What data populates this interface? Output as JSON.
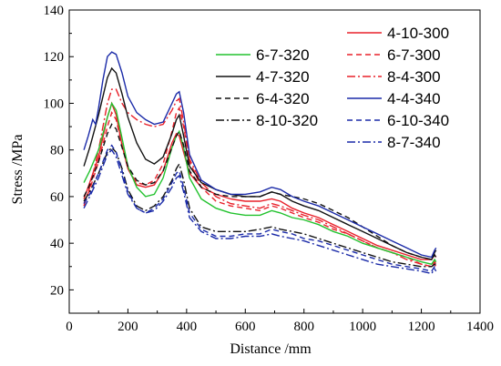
{
  "chart_data": {
    "type": "line",
    "xlabel": "Distance /mm",
    "ylabel": "Stress /MPa",
    "xlim": [
      0,
      1400
    ],
    "ylim": [
      10,
      140
    ],
    "xticks": [
      0,
      200,
      400,
      600,
      800,
      1000,
      1200,
      1400
    ],
    "yticks": [
      20,
      40,
      60,
      80,
      100,
      120,
      140
    ],
    "grid": false,
    "legend_placement": "top, two columns",
    "series": [
      {
        "name": "4-10-300",
        "color": "#e8202a",
        "dash": "solid",
        "x": [
          50,
          70,
          100,
          130,
          145,
          160,
          180,
          200,
          230,
          260,
          290,
          320,
          350,
          365,
          375,
          390,
          410,
          450,
          500,
          550,
          600,
          650,
          690,
          720,
          760,
          800,
          850,
          900,
          950,
          1000,
          1050,
          1100,
          1150,
          1200,
          1235,
          1245,
          1250
        ],
        "y": [
          59,
          66,
          77,
          94,
          100,
          95,
          82,
          72,
          65,
          64,
          65,
          71,
          83,
          87,
          86,
          79,
          70,
          64,
          61,
          59,
          58,
          58,
          59,
          58,
          55,
          53,
          51,
          48,
          45,
          42,
          39,
          37,
          35,
          33,
          33,
          35,
          34
        ]
      },
      {
        "name": "6-7-300",
        "color": "#e8202a",
        "dash": "6,4",
        "x": [
          50,
          70,
          100,
          130,
          145,
          160,
          180,
          200,
          230,
          260,
          290,
          320,
          350,
          365,
          375,
          390,
          410,
          450,
          500,
          550,
          600,
          650,
          690,
          720,
          760,
          800,
          850,
          900,
          950,
          1000,
          1050,
          1100,
          1150,
          1200,
          1235,
          1245,
          1250
        ],
        "y": [
          57,
          63,
          75,
          90,
          96,
          93,
          82,
          72,
          66,
          65,
          67,
          74,
          88,
          96,
          98,
          90,
          75,
          64,
          58,
          56,
          55,
          54,
          56,
          55,
          53,
          51,
          49,
          46,
          44,
          41,
          38,
          36,
          34,
          31,
          30,
          32,
          31
        ]
      },
      {
        "name": "8-4-300",
        "color": "#e8202a",
        "dash": "9,3,2,3",
        "x": [
          50,
          70,
          100,
          130,
          145,
          160,
          180,
          200,
          230,
          260,
          290,
          320,
          350,
          365,
          375,
          390,
          410,
          450,
          500,
          550,
          600,
          650,
          690,
          720,
          760,
          800,
          850,
          900,
          950,
          1000,
          1050,
          1100,
          1150,
          1200,
          1235,
          1245,
          1250
        ],
        "y": [
          56,
          64,
          80,
          100,
          106,
          106,
          100,
          96,
          93,
          91,
          90,
          91,
          97,
          101,
          102,
          92,
          76,
          66,
          60,
          57,
          56,
          55,
          57,
          56,
          54,
          52,
          50,
          47,
          44,
          41,
          38,
          36,
          33,
          31,
          30,
          31,
          30
        ]
      },
      {
        "name": "6-7-320",
        "color": "#22c22e",
        "dash": "solid",
        "x": [
          50,
          70,
          100,
          130,
          145,
          160,
          180,
          200,
          230,
          260,
          290,
          320,
          350,
          365,
          375,
          390,
          410,
          450,
          500,
          550,
          600,
          650,
          690,
          720,
          760,
          800,
          850,
          900,
          950,
          1000,
          1050,
          1100,
          1150,
          1200,
          1235,
          1245,
          1250
        ],
        "y": [
          66,
          71,
          80,
          94,
          100,
          97,
          85,
          73,
          64,
          60,
          61,
          68,
          81,
          86,
          88,
          81,
          68,
          59,
          55,
          53,
          52,
          52,
          54,
          53,
          51,
          50,
          48,
          45,
          43,
          40,
          38,
          36,
          34,
          32,
          31,
          33,
          32
        ]
      },
      {
        "name": "4-7-320",
        "color": "#111111",
        "dash": "solid",
        "x": [
          50,
          70,
          100,
          130,
          145,
          160,
          180,
          200,
          230,
          260,
          290,
          320,
          350,
          365,
          375,
          390,
          410,
          450,
          500,
          550,
          600,
          650,
          690,
          720,
          760,
          800,
          850,
          900,
          950,
          1000,
          1050,
          1100,
          1150,
          1200,
          1235,
          1245,
          1250
        ],
        "y": [
          73,
          81,
          95,
          111,
          115,
          113,
          104,
          94,
          83,
          76,
          74,
          77,
          87,
          93,
          95,
          86,
          73,
          66,
          63,
          61,
          60,
          60,
          62,
          61,
          58,
          56,
          54,
          51,
          48,
          45,
          42,
          39,
          36,
          34,
          33,
          36,
          37
        ]
      },
      {
        "name": "6-4-320",
        "color": "#111111",
        "dash": "6,4",
        "x": [
          50,
          70,
          100,
          130,
          145,
          160,
          180,
          200,
          230,
          260,
          290,
          320,
          350,
          365,
          375,
          390,
          410,
          450,
          500,
          550,
          600,
          650,
          690,
          720,
          760,
          800,
          850,
          900,
          950,
          1000,
          1050,
          1100,
          1150,
          1200,
          1235,
          1245,
          1250
        ],
        "y": [
          60,
          65,
          75,
          87,
          91,
          89,
          81,
          73,
          67,
          65,
          66,
          71,
          81,
          86,
          88,
          82,
          71,
          64,
          61,
          60,
          60,
          60,
          62,
          61,
          60,
          59,
          57,
          54,
          51,
          47,
          43,
          39,
          36,
          34,
          33,
          35,
          34
        ]
      },
      {
        "name": "8-10-320",
        "color": "#111111",
        "dash": "9,3,2,3",
        "x": [
          50,
          70,
          100,
          130,
          145,
          160,
          180,
          200,
          230,
          260,
          290,
          320,
          350,
          365,
          375,
          390,
          410,
          450,
          500,
          550,
          600,
          650,
          690,
          720,
          760,
          800,
          850,
          900,
          950,
          1000,
          1050,
          1100,
          1150,
          1200,
          1235,
          1245,
          1250
        ],
        "y": [
          58,
          62,
          70,
          79,
          81,
          79,
          72,
          63,
          56,
          54,
          56,
          60,
          67,
          72,
          74,
          67,
          55,
          47,
          45,
          45,
          45,
          46,
          47,
          46,
          45,
          44,
          42,
          40,
          38,
          36,
          34,
          32,
          31,
          30,
          30,
          31,
          31
        ]
      },
      {
        "name": "4-4-340",
        "color": "#1a2aa8",
        "dash": "solid",
        "x": [
          50,
          65,
          80,
          90,
          100,
          115,
          130,
          145,
          160,
          180,
          200,
          230,
          260,
          290,
          320,
          350,
          365,
          375,
          390,
          410,
          450,
          500,
          550,
          600,
          650,
          690,
          720,
          760,
          800,
          850,
          900,
          950,
          1000,
          1050,
          1100,
          1150,
          1200,
          1235,
          1245,
          1250
        ],
        "y": [
          80,
          86,
          93,
          91,
          98,
          110,
          120,
          122,
          121,
          113,
          103,
          96,
          93,
          91,
          92,
          100,
          104,
          105,
          96,
          78,
          67,
          63,
          61,
          61,
          62,
          64,
          63,
          60,
          58,
          56,
          53,
          50,
          47,
          44,
          41,
          38,
          35,
          34,
          37,
          38
        ]
      },
      {
        "name": "6-10-340",
        "color": "#1a2aa8",
        "dash": "6,4",
        "x": [
          50,
          70,
          100,
          130,
          145,
          160,
          180,
          200,
          230,
          260,
          290,
          320,
          350,
          365,
          375,
          390,
          410,
          450,
          500,
          550,
          600,
          650,
          690,
          720,
          760,
          800,
          850,
          900,
          950,
          1000,
          1050,
          1100,
          1150,
          1200,
          1235,
          1245,
          1250
        ],
        "y": [
          57,
          61,
          70,
          80,
          82,
          79,
          71,
          62,
          55,
          53,
          55,
          59,
          66,
          70,
          71,
          64,
          53,
          46,
          43,
          43,
          44,
          44,
          46,
          45,
          44,
          42,
          41,
          39,
          37,
          35,
          33,
          31,
          30,
          29,
          28,
          30,
          29
        ]
      },
      {
        "name": "8-7-340",
        "color": "#1a2aa8",
        "dash": "9,3,2,3",
        "x": [
          50,
          70,
          100,
          130,
          145,
          160,
          180,
          200,
          230,
          260,
          290,
          320,
          350,
          365,
          375,
          390,
          410,
          450,
          500,
          550,
          600,
          650,
          690,
          720,
          760,
          800,
          850,
          900,
          950,
          1000,
          1050,
          1100,
          1150,
          1200,
          1235,
          1245,
          1250
        ],
        "y": [
          55,
          60,
          68,
          78,
          80,
          77,
          69,
          61,
          55,
          53,
          54,
          58,
          64,
          68,
          69,
          62,
          51,
          45,
          42,
          42,
          43,
          43,
          44,
          43,
          42,
          41,
          39,
          37,
          35,
          33,
          31,
          30,
          29,
          28,
          27,
          29,
          28
        ]
      }
    ],
    "legend_left": [
      "6-7-320",
      "4-7-320",
      "6-4-320",
      "8-10-320"
    ],
    "legend_right": [
      "4-10-300",
      "6-7-300",
      "8-4-300",
      "4-4-340",
      "6-10-340",
      "8-7-340"
    ]
  }
}
